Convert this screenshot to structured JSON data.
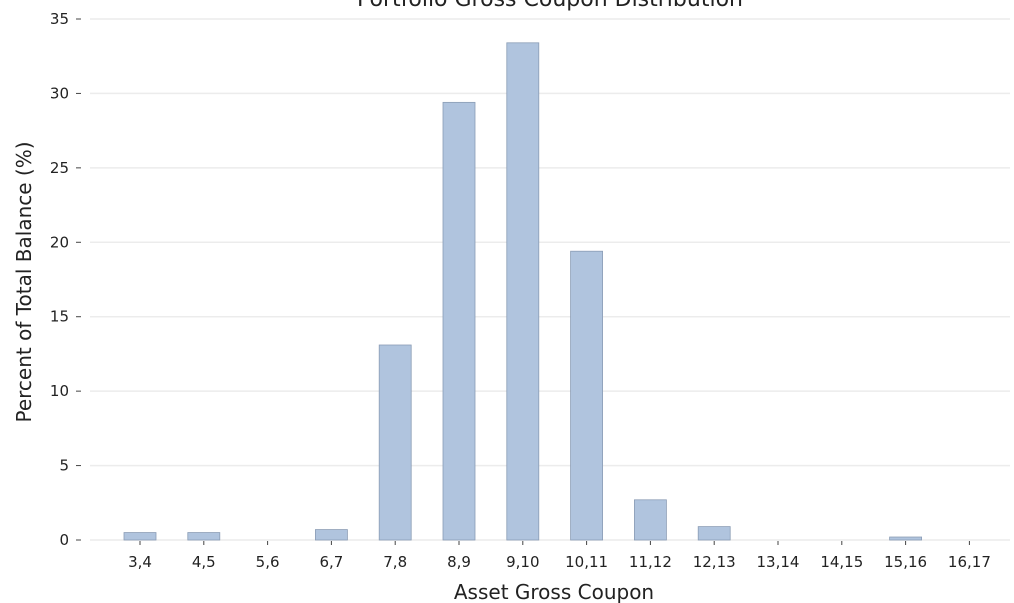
{
  "chart_data": {
    "type": "bar",
    "title": "Portfolio Gross Coupon Distribution",
    "xlabel": "Asset Gross Coupon",
    "ylabel": "Percent of Total Balance (%)",
    "categories": [
      "3,4",
      "4,5",
      "5,6",
      "6,7",
      "7,8",
      "8,9",
      "9,10",
      "10,11",
      "11,12",
      "12,13",
      "13,14",
      "14,15",
      "15,16",
      "16,17"
    ],
    "values": [
      0.5,
      0.5,
      0.0,
      0.7,
      13.1,
      29.4,
      33.4,
      19.4,
      2.7,
      0.9,
      0.0,
      0.0,
      0.2,
      0.0
    ],
    "ylim": [
      0,
      35
    ],
    "yticks": [
      0,
      5,
      10,
      15,
      20,
      25,
      30,
      35
    ],
    "grid": "y",
    "bar_color": "#b0c4de"
  }
}
